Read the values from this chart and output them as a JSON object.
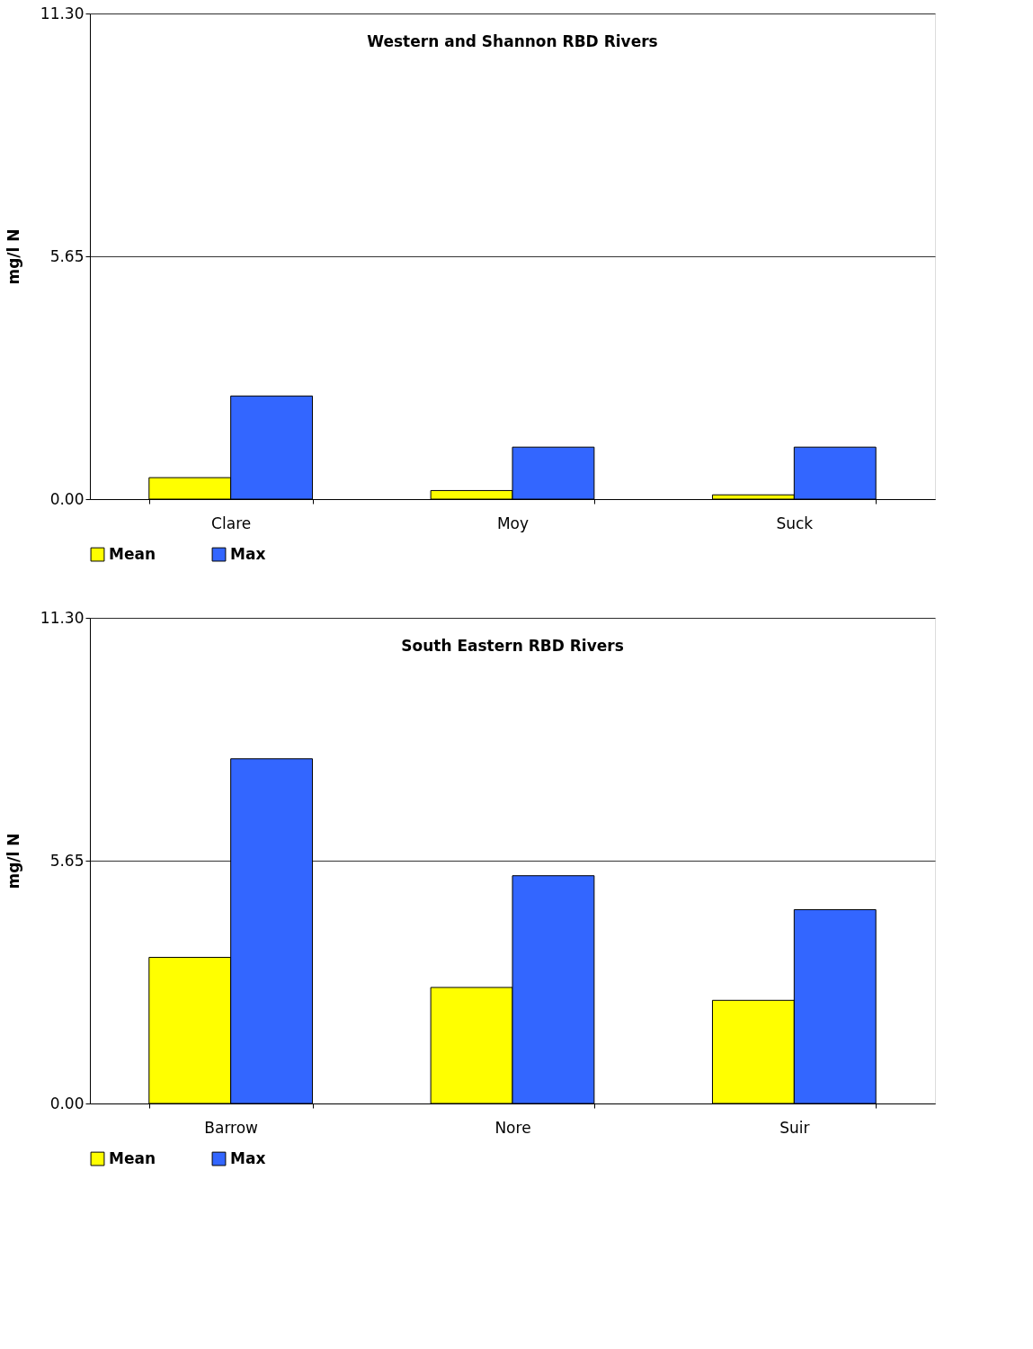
{
  "chart_data": [
    {
      "type": "bar",
      "title": "Western and Shannon RBD Rivers",
      "ylabel": "mg/l N",
      "categories": [
        "Clare",
        "Moy",
        "Suck"
      ],
      "series": [
        {
          "name": "Mean",
          "color": "#ffff00",
          "values": [
            0.5,
            0.2,
            0.1
          ]
        },
        {
          "name": "Max",
          "color": "#3366ff",
          "values": [
            2.4,
            1.21,
            1.21
          ]
        }
      ],
      "ylim": [
        0,
        11.3
      ],
      "yticks": [
        {
          "value": 0,
          "label": "0.00"
        },
        {
          "value": 5.65,
          "label": "5.65"
        },
        {
          "value": 11.3,
          "label": "11.30"
        }
      ],
      "grid": "y",
      "legend": "bottom"
    },
    {
      "type": "bar",
      "title": "South Eastern RBD Rivers",
      "ylabel": "mg/l N",
      "categories": [
        "Barrow",
        "Nore",
        "Suir"
      ],
      "series": [
        {
          "name": "Mean",
          "color": "#ffff00",
          "values": [
            3.4,
            2.7,
            2.4
          ]
        },
        {
          "name": "Max",
          "color": "#3366ff",
          "values": [
            8.02,
            5.3,
            4.51
          ]
        }
      ],
      "ylim": [
        0,
        11.3
      ],
      "yticks": [
        {
          "value": 0,
          "label": "0.00"
        },
        {
          "value": 5.65,
          "label": "5.65"
        },
        {
          "value": 11.3,
          "label": "11.30"
        }
      ],
      "grid": "y",
      "legend": "bottom"
    }
  ]
}
